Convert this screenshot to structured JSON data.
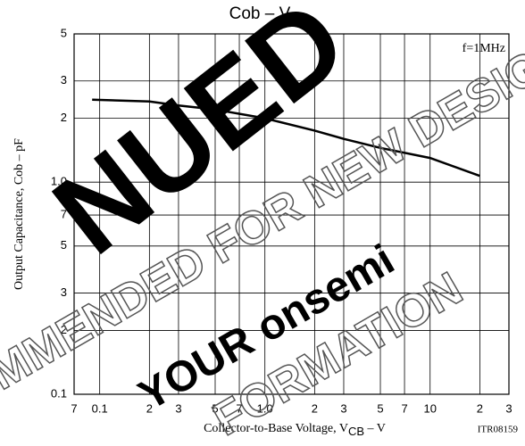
{
  "chart_data": {
    "type": "line",
    "title": "Cob – V",
    "title_sub": "CB",
    "xlabel": "Collector-to-Base Voltage, V",
    "xlabel_sub": "CB",
    "xlabel_unit": " – V",
    "ylabel": "Output Capacitance, Cob – pF",
    "annotation": "f=1MHz",
    "code": "ITR08159",
    "watermark": [
      "NUED",
      "MMENDED FOR NEW DESIG",
      "YOUR onsemi",
      "FORMATION"
    ],
    "x": [
      0.09,
      0.2,
      0.3,
      0.5,
      1,
      2,
      3,
      5,
      10,
      20
    ],
    "values": [
      2.45,
      2.4,
      2.3,
      2.2,
      2.0,
      1.75,
      1.6,
      1.45,
      1.3,
      1.07
    ],
    "color": "#000000",
    "xscale": "log",
    "yscale": "log",
    "grid": true,
    "xlim": [
      0.07,
      30
    ],
    "ylim": [
      0.1,
      5
    ],
    "xticks": [
      {
        "value": 0.07,
        "label": "7"
      },
      0.1,
      {
        "value": 0.2,
        "label": "2"
      },
      {
        "value": 0.3,
        "label": "3"
      },
      {
        "value": 0.5,
        "label": "5"
      },
      {
        "value": 0.7,
        "label": "7"
      },
      {
        "value": 1,
        "label": "1.0"
      },
      2,
      3,
      5,
      7,
      10,
      {
        "value": 20,
        "label": "2"
      },
      {
        "value": 30,
        "label": "3"
      }
    ],
    "yticks": [
      0.1,
      {
        "value": 0.2,
        "label": "2"
      },
      {
        "value": 0.3,
        "label": "3"
      },
      {
        "value": 0.5,
        "label": "5"
      },
      {
        "value": 0.7,
        "label": "7"
      },
      {
        "value": 1,
        "label": "1.0"
      },
      2,
      3,
      5
    ]
  }
}
